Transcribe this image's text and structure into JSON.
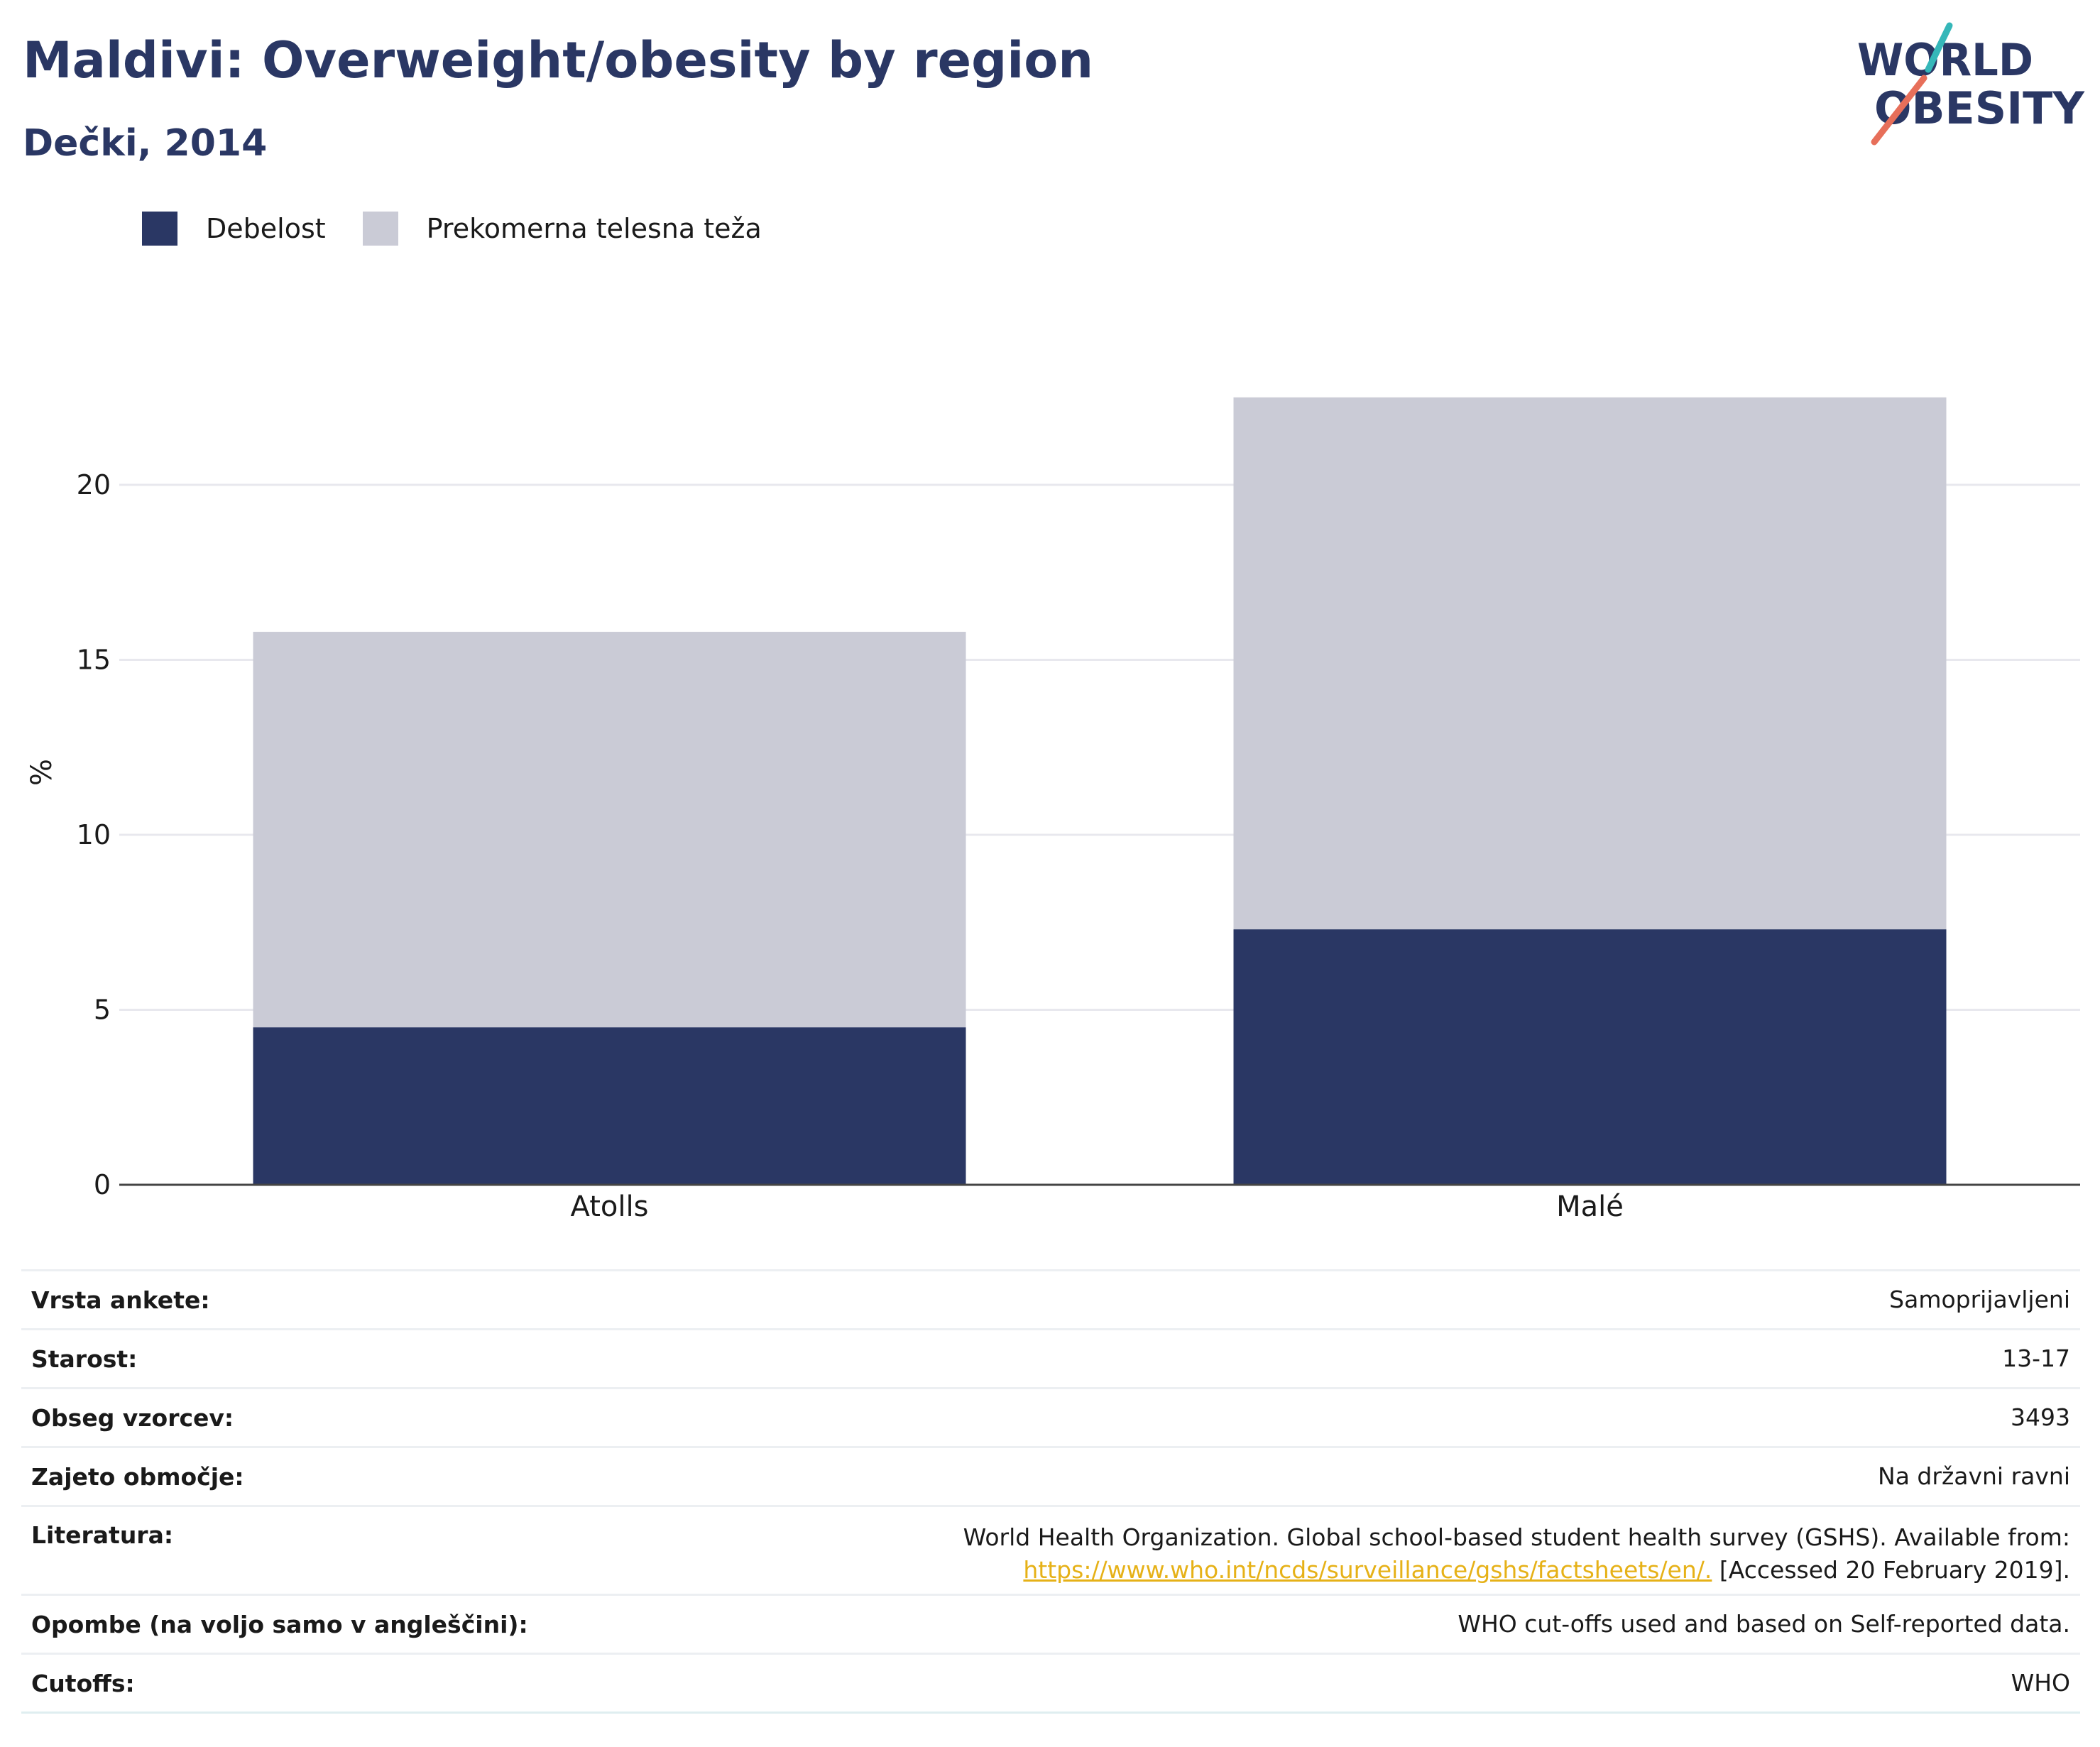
{
  "title": "Maldivi: Overweight/obesity by region",
  "subtitle": "Dečki, 2014",
  "logo": {
    "line1": "WORLD",
    "line2": "OBESITY"
  },
  "colors": {
    "obesity": "#2a3764",
    "overweight": "#cacbd6",
    "title": "#2a3764",
    "link": "#e6b117",
    "grid": "#e8e8ee",
    "axis": "#444444"
  },
  "chart_data": {
    "type": "bar",
    "stacked": true,
    "categories": [
      "Atolls",
      "Malé"
    ],
    "series": [
      {
        "name": "Debelost",
        "values": [
          4.5,
          7.3
        ]
      },
      {
        "name": "Prekomerna telesna teža",
        "values": [
          11.3,
          15.2
        ]
      }
    ],
    "ylabel": "%",
    "ylim": [
      0,
      23
    ],
    "yticks": [
      0,
      5,
      10,
      15,
      20
    ],
    "grid": true,
    "legend": "top-left"
  },
  "info": [
    {
      "label": "Vrsta ankete:",
      "value": "Samoprijavljeni"
    },
    {
      "label": "Starost:",
      "value": "13-17"
    },
    {
      "label": "Obseg vzorcev:",
      "value": "3493"
    },
    {
      "label": "Zajeto območje:",
      "value": "Na državni ravni"
    },
    {
      "label": "Literatura:",
      "value_line1": "World Health Organization. Global school-based student health survey (GSHS). Available from:",
      "link": "https://www.who.int/ncds/surveillance/gshs/factsheets/en/.",
      "value_after_link": " [Accessed 20 February 2019]."
    },
    {
      "label": "Opombe (na voljo samo v angleščini):",
      "value": "WHO cut-offs used and based on Self-reported data."
    },
    {
      "label": "Cutoffs:",
      "value": "WHO"
    }
  ]
}
